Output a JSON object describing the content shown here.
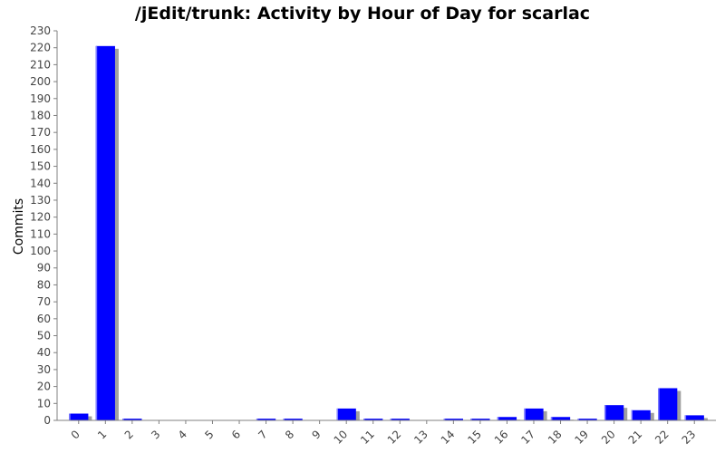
{
  "chart_data": {
    "type": "bar",
    "title": "/jEdit/trunk: Activity by Hour of Day for scarlac",
    "xlabel": "",
    "ylabel": "Commits",
    "categories": [
      "0",
      "1",
      "2",
      "3",
      "4",
      "5",
      "6",
      "7",
      "8",
      "9",
      "10",
      "11",
      "12",
      "13",
      "14",
      "15",
      "16",
      "17",
      "18",
      "19",
      "20",
      "21",
      "22",
      "23"
    ],
    "values": [
      4,
      221,
      1,
      0,
      0,
      0,
      0,
      1,
      1,
      0,
      7,
      1,
      1,
      0,
      1,
      1,
      2,
      7,
      2,
      1,
      9,
      6,
      19,
      3
    ],
    "ylim": [
      0,
      230
    ],
    "ytick_step": 10,
    "grid": false,
    "colors": {
      "bar": "#0000ff",
      "bar_edge": "#000080",
      "shadow": "#a0a0a0",
      "axis": "#808080"
    }
  }
}
